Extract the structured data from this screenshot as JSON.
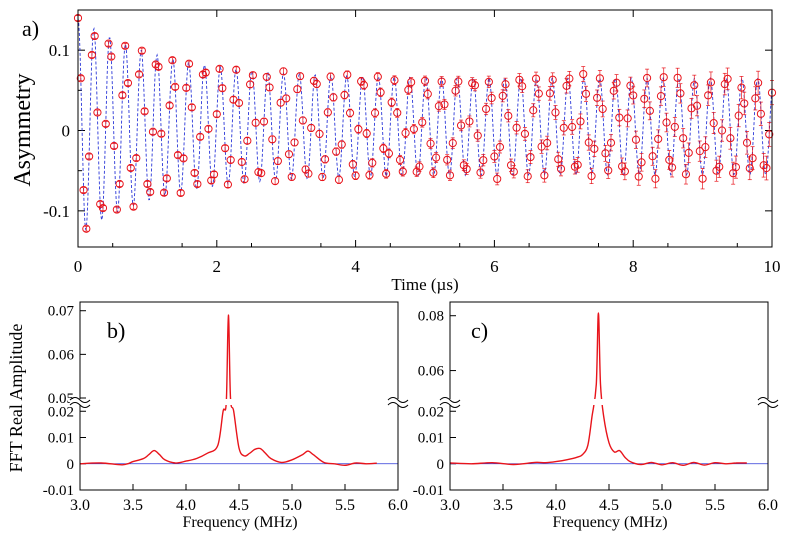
{
  "figure": {
    "panel_labels": {
      "a": "a)",
      "b": "b)",
      "c": "c)"
    },
    "colors": {
      "data": "#e8141b",
      "fit": "#2a36d8",
      "axis": "#000000"
    }
  },
  "chart_data": [
    {
      "id": "a",
      "type": "scatter",
      "title": "",
      "xlabel": "Time (µs)",
      "ylabel": "Asymmetry",
      "xlim": [
        0,
        10
      ],
      "ylim": [
        -0.145,
        0.15
      ],
      "xticks": [
        0,
        2,
        4,
        6,
        8,
        10
      ],
      "xtick_labels": [
        "0",
        "2",
        "4",
        "6",
        "8",
        "10"
      ],
      "yticks": [
        -0.1,
        0,
        0.1
      ],
      "ytick_labels": [
        "-0.1",
        "0",
        "0.1"
      ],
      "signal": {
        "frequency_MHz": 4.39,
        "amplitude_initial": 0.135,
        "amplitude_late": 0.06,
        "decay_time_us": 1.2,
        "offset": 0.005,
        "sample_step_us": 0.04
      },
      "series": [
        {
          "name": "data",
          "style": "open-circles-with-errorbars"
        },
        {
          "name": "fit",
          "style": "dashed-line"
        }
      ]
    },
    {
      "id": "b",
      "type": "line",
      "xlabel": "Frequency (MHz)",
      "ylabel": "FFT Real Amplitude",
      "xlim": [
        3.0,
        6.0
      ],
      "xticks": [
        3.0,
        3.5,
        4.0,
        4.5,
        5.0,
        5.5,
        6.0
      ],
      "xtick_labels": [
        "3.0",
        "3.5",
        "4.0",
        "4.5",
        "5.0",
        "5.5",
        "6.0"
      ],
      "ytick_labels_lower": [
        "-0.01",
        "0",
        "0.01",
        "0.02"
      ],
      "ytick_labels_upper": [
        "0.05",
        "0.06",
        "0.07"
      ],
      "y_lower_range": [
        -0.01,
        0.022
      ],
      "y_upper_range": [
        0.05,
        0.072
      ],
      "x": [
        3.0,
        3.2,
        3.4,
        3.5,
        3.6,
        3.65,
        3.7,
        3.75,
        3.8,
        3.9,
        4.0,
        4.1,
        4.2,
        4.3,
        4.35,
        4.38,
        4.4,
        4.42,
        4.45,
        4.5,
        4.55,
        4.6,
        4.65,
        4.7,
        4.75,
        4.8,
        4.9,
        5.0,
        5.1,
        5.15,
        5.2,
        5.3,
        5.4,
        5.5,
        5.6,
        5.7,
        5.8
      ],
      "y": [
        0.0,
        0.0003,
        -0.0004,
        0.0008,
        0.002,
        0.0035,
        0.005,
        0.0035,
        0.0015,
        0.0003,
        0.001,
        0.002,
        0.004,
        0.007,
        0.02,
        0.045,
        0.069,
        0.05,
        0.02,
        0.006,
        0.003,
        0.004,
        0.0055,
        0.0058,
        0.004,
        0.002,
        0.0005,
        0.0015,
        0.0035,
        0.0048,
        0.0035,
        0.0005,
        0.0,
        -0.0006,
        0.0003,
        0.0,
        0.0002
      ]
    },
    {
      "id": "c",
      "type": "line",
      "xlabel": "Frequency (MHz)",
      "ylabel": "",
      "xlim": [
        3.0,
        6.0
      ],
      "xticks": [
        3.0,
        3.5,
        4.0,
        4.5,
        5.0,
        5.5,
        6.0
      ],
      "xtick_labels": [
        "3.0",
        "3.5",
        "4.0",
        "4.5",
        "5.0",
        "5.5",
        "6.0"
      ],
      "ytick_labels_lower": [
        "-0.01",
        "0",
        "0.01",
        "0.02"
      ],
      "ytick_labels_upper": [
        "0.06",
        "0.08"
      ],
      "y_lower_range": [
        -0.01,
        0.022
      ],
      "y_upper_range": [
        0.05,
        0.085
      ],
      "x": [
        3.0,
        3.2,
        3.4,
        3.6,
        3.8,
        3.9,
        4.0,
        4.1,
        4.2,
        4.25,
        4.3,
        4.34,
        4.38,
        4.4,
        4.42,
        4.45,
        4.5,
        4.55,
        4.6,
        4.65,
        4.7,
        4.8,
        4.9,
        5.0,
        5.1,
        5.2,
        5.3,
        5.4,
        5.5,
        5.6,
        5.7,
        5.8
      ],
      "y": [
        0.0003,
        0.0,
        0.0004,
        -0.0003,
        0.0005,
        0.0004,
        0.0008,
        0.0015,
        0.0025,
        0.0035,
        0.007,
        0.018,
        0.055,
        0.081,
        0.055,
        0.018,
        0.008,
        0.0045,
        0.005,
        0.0025,
        0.0008,
        -0.0003,
        0.0005,
        -0.0004,
        0.0004,
        -0.0006,
        0.0005,
        -0.0005,
        0.0004,
        0.0,
        0.0003,
        0.0003
      ]
    }
  ]
}
